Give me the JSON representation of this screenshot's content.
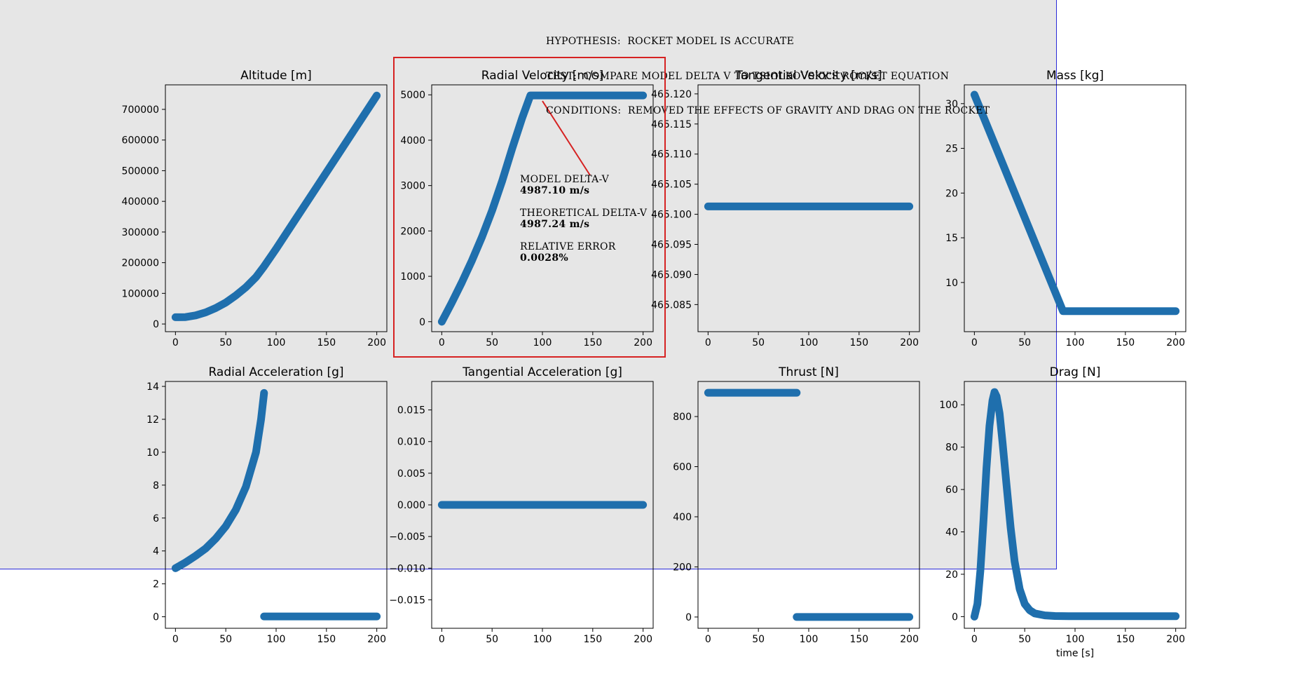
{
  "header": {
    "line1": "HYPOTHESIS:  ROCKET MODEL IS ACCURATE",
    "line2": "TEST:  COMPARE MODEL DELTA V TO TSIOLKOVSKY'S ROCKET EQUATION",
    "line3": "CONDITIONS:  REMOVED THE EFFECTS OF GRAVITY AND DRAG ON THE ROCKET"
  },
  "annotation": {
    "model_label": "MODEL DELTA-V",
    "model_value": "4987.10  m/s",
    "theory_label": "THEORETICAL DELTA-V",
    "theory_value": "4987.24  m/s",
    "error_label": "RELATIVE ERROR",
    "error_value": "0.0028%"
  },
  "colors": {
    "series": "#1f6fad",
    "overlay": "#e6e6e6",
    "overlay_border": "#2b2bd9",
    "highlight": "#d62222",
    "annotation_line": "#d62222"
  },
  "chart_data": [
    {
      "type": "scatter",
      "title": "Altitude [m]",
      "xlabel": "",
      "xlim": [
        -10,
        210
      ],
      "ylim": [
        -25000,
        780000
      ],
      "xticks": [
        0,
        50,
        100,
        150,
        200
      ],
      "yticks": [
        0,
        100000,
        200000,
        300000,
        400000,
        500000,
        600000,
        700000
      ],
      "segments": [
        {
          "points": [
            [
              0,
              22000
            ],
            [
              10,
              22500
            ],
            [
              20,
              28000
            ],
            [
              30,
              38000
            ],
            [
              40,
              52000
            ],
            [
              50,
              70000
            ],
            [
              60,
              93000
            ],
            [
              70,
              120000
            ],
            [
              80,
              153000
            ],
            [
              88,
              188000
            ],
            [
              100,
              245000
            ],
            [
              120,
              345000
            ],
            [
              140,
              445000
            ],
            [
              160,
              545000
            ],
            [
              180,
              645000
            ],
            [
              200,
              745000
            ]
          ]
        }
      ]
    },
    {
      "type": "scatter",
      "title": "Radial Velocity [m/s]",
      "xlabel": "",
      "xlim": [
        -10,
        210
      ],
      "ylim": [
        -220,
        5220
      ],
      "xticks": [
        0,
        50,
        100,
        150,
        200
      ],
      "yticks": [
        0,
        1000,
        2000,
        3000,
        4000,
        5000
      ],
      "segments": [
        {
          "points": [
            [
              0,
              0
            ],
            [
              10,
              420
            ],
            [
              20,
              870
            ],
            [
              30,
              1350
            ],
            [
              40,
              1870
            ],
            [
              50,
              2450
            ],
            [
              60,
              3100
            ],
            [
              70,
              3820
            ],
            [
              80,
              4500
            ],
            [
              88,
              4987
            ],
            [
              100,
              4987
            ],
            [
              150,
              4987
            ],
            [
              200,
              4987
            ]
          ]
        }
      ]
    },
    {
      "type": "scatter",
      "title": "Tangential Velocity [m/s]",
      "xlabel": "",
      "xlim": [
        -10,
        210
      ],
      "ylim": [
        465.0805,
        465.1215
      ],
      "xticks": [
        0,
        50,
        100,
        150,
        200
      ],
      "yticks": [
        465.085,
        465.09,
        465.095,
        465.1,
        465.105,
        465.11,
        465.115,
        465.12
      ],
      "ytick_labels": [
        "465.085",
        "465.090",
        "465.095",
        "465.100",
        "465.105",
        "465.110",
        "465.115",
        "465.120"
      ],
      "segments": [
        {
          "points": [
            [
              0,
              465.1013
            ],
            [
              200,
              465.1013
            ]
          ]
        }
      ]
    },
    {
      "type": "scatter",
      "title": "Mass [kg]",
      "xlabel": "",
      "xlim": [
        -10,
        210
      ],
      "ylim": [
        4.5,
        32.1
      ],
      "xticks": [
        0,
        50,
        100,
        150,
        200
      ],
      "yticks": [
        10,
        15,
        20,
        25,
        30
      ],
      "segments": [
        {
          "points": [
            [
              0,
              31
            ],
            [
              88,
              6.8
            ],
            [
              200,
              6.8
            ]
          ]
        }
      ]
    },
    {
      "type": "scatter",
      "title": "Radial Acceleration [g]",
      "xlabel": "",
      "xlim": [
        -10,
        210
      ],
      "ylim": [
        -0.7,
        14.3
      ],
      "xticks": [
        0,
        50,
        100,
        150,
        200
      ],
      "yticks": [
        0,
        2,
        4,
        6,
        8,
        10,
        12,
        14
      ],
      "segments": [
        {
          "points": [
            [
              0,
              2.95
            ],
            [
              10,
              3.3
            ],
            [
              20,
              3.7
            ],
            [
              30,
              4.15
            ],
            [
              40,
              4.75
            ],
            [
              50,
              5.5
            ],
            [
              60,
              6.5
            ],
            [
              70,
              7.9
            ],
            [
              80,
              10.0
            ],
            [
              85,
              12.0
            ],
            [
              88,
              13.6
            ]
          ]
        },
        {
          "points": [
            [
              88,
              0.02
            ],
            [
              200,
              0.02
            ]
          ]
        }
      ]
    },
    {
      "type": "scatter",
      "title": "Tangential Acceleration [g]",
      "xlabel": "",
      "xlim": [
        -10,
        210
      ],
      "ylim": [
        -0.0195,
        0.0195
      ],
      "xticks": [
        0,
        50,
        100,
        150,
        200
      ],
      "yticks": [
        -0.015,
        -0.01,
        -0.005,
        0,
        0.005,
        0.01,
        0.015
      ],
      "ytick_labels": [
        "−0.015",
        "−0.010",
        "−0.005",
        "0.000",
        "0.005",
        "0.010",
        "0.015"
      ],
      "segments": [
        {
          "points": [
            [
              0,
              0
            ],
            [
              200,
              0
            ]
          ]
        }
      ]
    },
    {
      "type": "scatter",
      "title": "Thrust [N]",
      "xlabel": "",
      "xlim": [
        -10,
        210
      ],
      "ylim": [
        -45,
        940
      ],
      "xticks": [
        0,
        50,
        100,
        150,
        200
      ],
      "yticks": [
        0,
        200,
        400,
        600,
        800
      ],
      "segments": [
        {
          "points": [
            [
              0,
              895
            ],
            [
              88,
              895
            ]
          ]
        },
        {
          "points": [
            [
              88,
              0
            ],
            [
              200,
              0
            ]
          ]
        }
      ]
    },
    {
      "type": "scatter",
      "title": "Drag [N]",
      "xlabel": "time [s]",
      "xlim": [
        -10,
        210
      ],
      "ylim": [
        -5.5,
        111
      ],
      "xticks": [
        0,
        50,
        100,
        150,
        200
      ],
      "yticks": [
        0,
        20,
        40,
        60,
        80,
        100
      ],
      "segments": [
        {
          "points": [
            [
              0,
              0
            ],
            [
              3,
              6
            ],
            [
              6,
              22
            ],
            [
              9,
              45
            ],
            [
              12,
              70
            ],
            [
              15,
              90
            ],
            [
              18,
              102
            ],
            [
              20,
              106
            ],
            [
              22,
              104
            ],
            [
              25,
              96
            ],
            [
              28,
              82
            ],
            [
              32,
              62
            ],
            [
              36,
              42
            ],
            [
              40,
              26
            ],
            [
              45,
              13
            ],
            [
              50,
              6
            ],
            [
              55,
              3
            ],
            [
              60,
              1.5
            ],
            [
              70,
              0.6
            ],
            [
              80,
              0.3
            ],
            [
              100,
              0.2
            ],
            [
              150,
              0.2
            ],
            [
              200,
              0.2
            ]
          ]
        }
      ]
    }
  ]
}
